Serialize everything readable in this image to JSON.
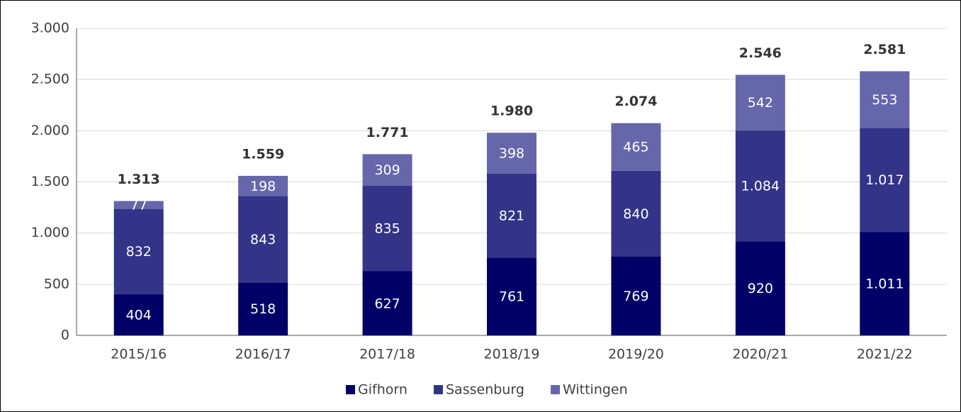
{
  "chart_data": {
    "type": "stacked_bar",
    "categories": [
      "2015/16",
      "2016/17",
      "2017/18",
      "2018/19",
      "2019/20",
      "2020/21",
      "2021/22"
    ],
    "series": [
      {
        "name": "Gifhorn",
        "color": "#000066",
        "values": [
          404,
          518,
          627,
          761,
          769,
          920,
          1011
        ],
        "value_labels": [
          "404",
          "518",
          "627",
          "761",
          "769",
          "920",
          "1.011"
        ]
      },
      {
        "name": "Sassenburg",
        "color": "#333388",
        "values": [
          832,
          843,
          835,
          821,
          840,
          1084,
          1017
        ],
        "value_labels": [
          "832",
          "843",
          "835",
          "821",
          "840",
          "1.084",
          "1.017"
        ]
      },
      {
        "name": "Wittingen",
        "color": "#6666aa",
        "values": [
          77,
          198,
          309,
          398,
          465,
          542,
          553
        ],
        "value_labels": [
          "77",
          "198",
          "309",
          "398",
          "465",
          "542",
          "553"
        ]
      }
    ],
    "totals": {
      "values": [
        1313,
        1559,
        1771,
        1980,
        2074,
        2546,
        2581
      ],
      "value_labels": [
        "1.313",
        "1.559",
        "1.771",
        "1.980",
        "2.074",
        "2.546",
        "2.581"
      ]
    },
    "ylim": [
      0,
      3000
    ],
    "yticks": [
      0,
      500,
      {
        "value": 1000,
        "label": "1.000"
      },
      {
        "value": 1500,
        "label": "1.500"
      },
      {
        "value": 2000,
        "label": "2.000"
      },
      {
        "value": 2500,
        "label": "2.500"
      },
      {
        "value": 3000,
        "label": "3.000"
      }
    ],
    "grid": true,
    "legend": "bottom"
  }
}
